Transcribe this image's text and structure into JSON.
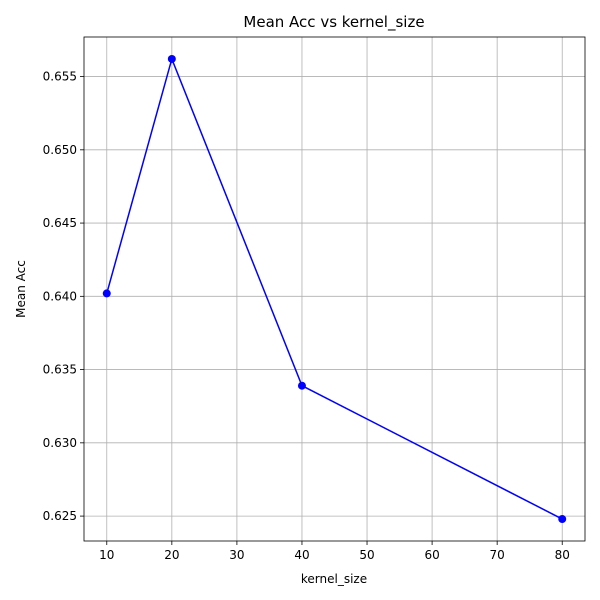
{
  "chart_data": {
    "type": "line",
    "title": "Mean Acc vs kernel_size",
    "xlabel": "kernel_size",
    "ylabel": "Mean Acc",
    "x": [
      10,
      20,
      40,
      80
    ],
    "series": [
      {
        "values": [
          0.6402,
          0.6562,
          0.6339,
          0.6248
        ],
        "color": "#0000ff",
        "marker": "circle"
      }
    ],
    "xlim": [
      6.5,
      83.5
    ],
    "ylim": [
      0.6233,
      0.6577
    ],
    "xticks": [
      "10",
      "20",
      "30",
      "40",
      "50",
      "60",
      "70",
      "80"
    ],
    "yticks": [
      "0.625",
      "0.630",
      "0.635",
      "0.640",
      "0.645",
      "0.650",
      "0.655"
    ],
    "grid": true
  }
}
